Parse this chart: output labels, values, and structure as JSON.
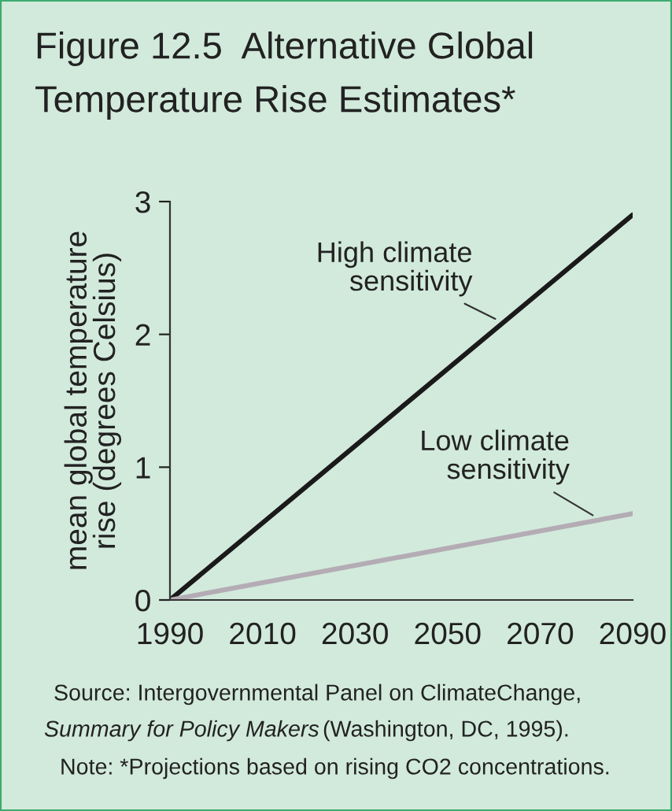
{
  "chart_data": {
    "type": "line",
    "title": "Figure 12.5  Alternative Global\nTemperature Rise Estimates*",
    "ylabel": "mean global temperature\nrise (degrees Celsius)",
    "x": [
      1990,
      2090
    ],
    "series": [
      {
        "name": "High climate\nsensitivity",
        "color": "#1a1a1a",
        "values": [
          0,
          2.9
        ]
      },
      {
        "name": "Low climate\nsensitivity",
        "color": "#b4acb4",
        "values": [
          0,
          0.65
        ]
      }
    ],
    "annotations": [
      "Source: Intergovernmental Panel on ClimateChange,",
      "Summary for Policy Makers",
      "(Washington, DC, 1995).",
      "Note: *Projections based on rising CO2 concentrations."
    ],
    "xlim": [
      1990,
      2090
    ],
    "ylim": [
      0,
      3
    ],
    "xticks": [
      1990,
      2010,
      2030,
      2050,
      2070,
      2090
    ],
    "yticks": [
      0,
      1,
      2,
      3
    ],
    "grid": false,
    "legend": false,
    "marker": "none",
    "line_style": "solid"
  }
}
